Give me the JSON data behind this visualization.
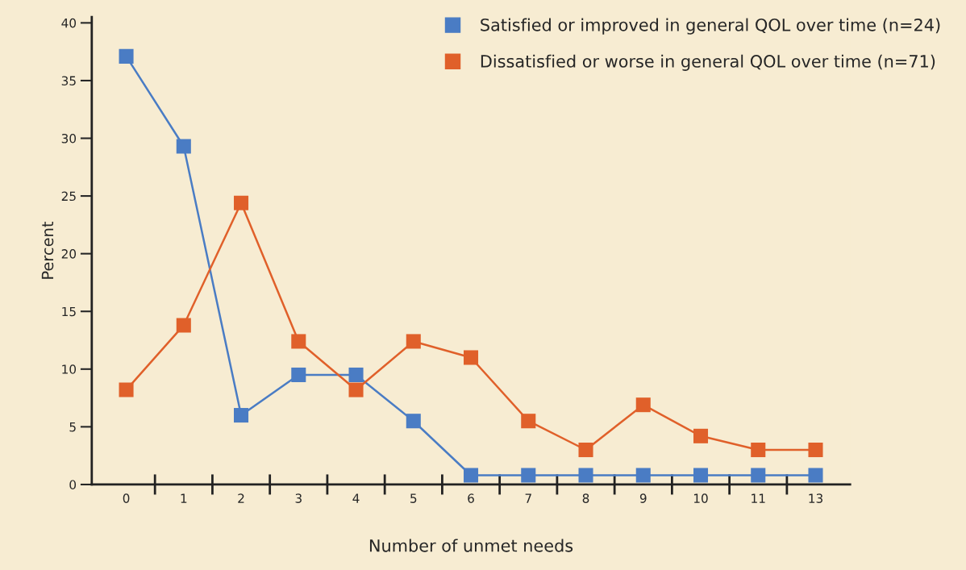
{
  "chart_data": {
    "type": "line",
    "xlabel": "Number of unmet needs",
    "ylabel": "Percent",
    "categories": [
      "0",
      "1",
      "2",
      "3",
      "4",
      "5",
      "6",
      "7",
      "8",
      "9",
      "10",
      "11",
      "13"
    ],
    "series": [
      {
        "name": "Satisfied or improved in general QOL over time (n=24)",
        "color": "#4a7cc4",
        "values": [
          37.1,
          29.3,
          6.0,
          9.5,
          9.5,
          5.5,
          0.8,
          0.8,
          0.8,
          0.8,
          0.8,
          0.8,
          0.8
        ]
      },
      {
        "name": "Dissatisfied or worse in general QOL over time (n=71)",
        "color": "#e0602a",
        "values": [
          8.2,
          13.8,
          24.4,
          12.4,
          8.2,
          12.4,
          11.0,
          5.5,
          3.0,
          6.9,
          4.2,
          3.0,
          3.0
        ]
      }
    ],
    "ylim": [
      0,
      40.5
    ],
    "yticks": [
      0,
      5,
      10,
      15,
      20,
      25,
      30,
      35,
      40
    ],
    "marker": "square",
    "line_style": "solid",
    "grid": false,
    "legend": "top right"
  }
}
